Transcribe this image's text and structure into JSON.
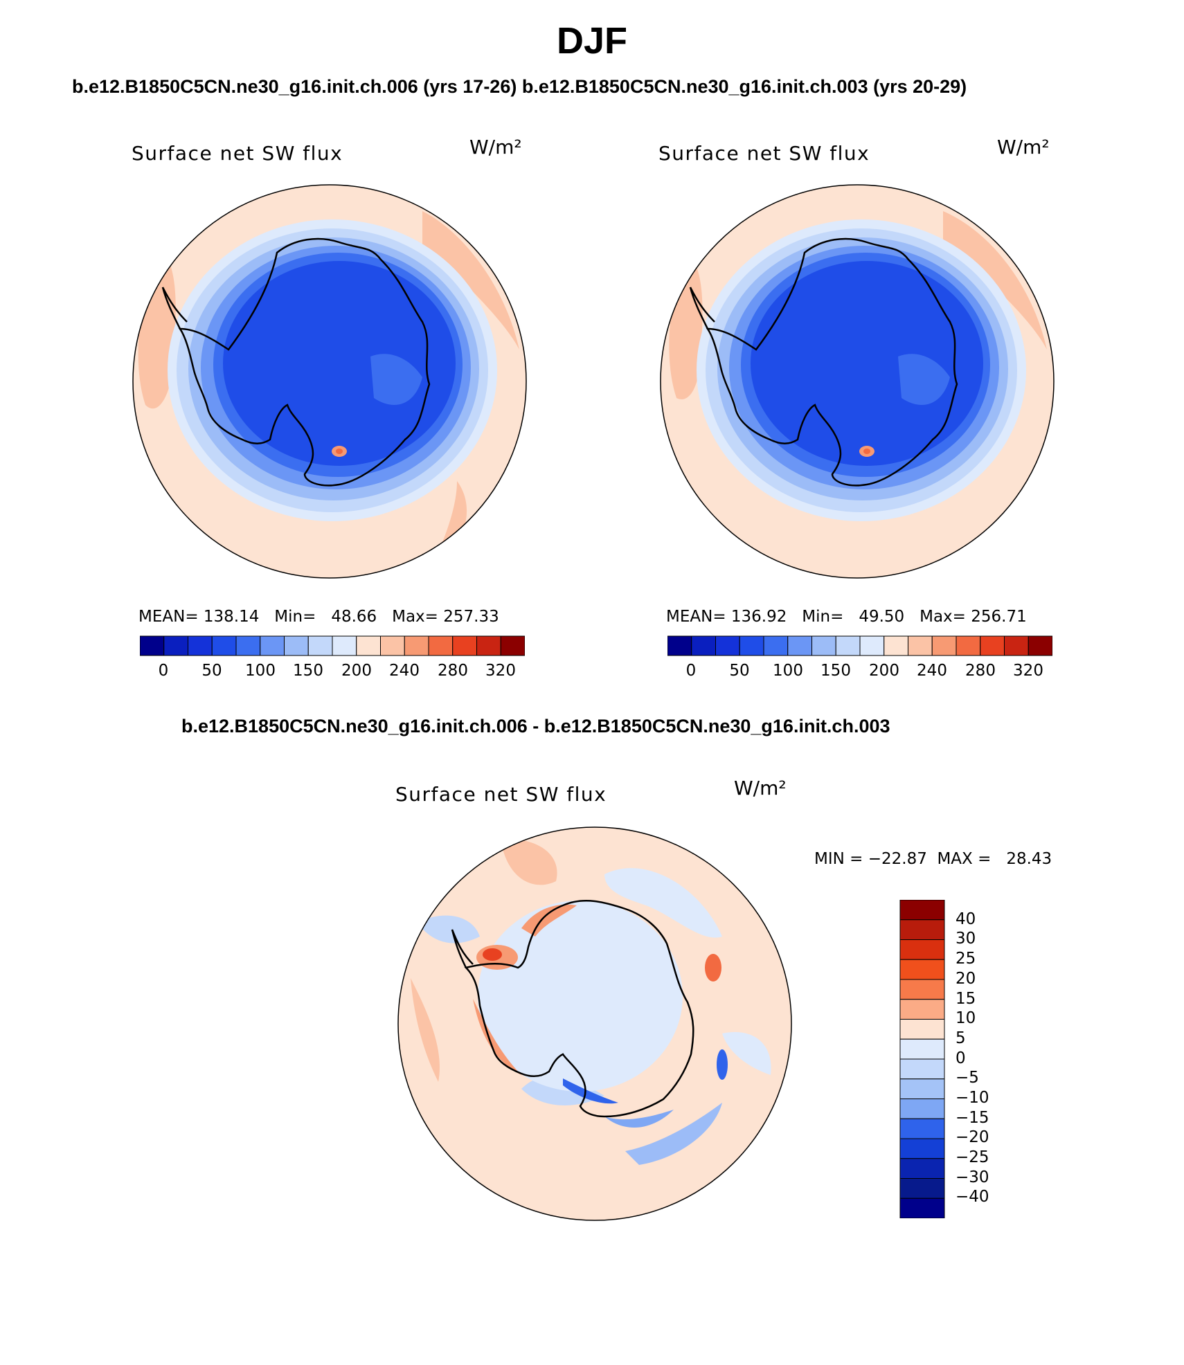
{
  "figure": {
    "season": "DJF",
    "top_title": "b.e12.B1850C5CN.ne30_g16.init.ch.006 (yrs 17-26) b.e12.B1850C5CN.ne30_g16.init.ch.003 (yrs 20-29)",
    "diff_title": "b.e12.B1850C5CN.ne30_g16.init.ch.006 - b.e12.B1850C5CN.ne30_g16.init.ch.003"
  },
  "panels": [
    {
      "variable": "Surface net SW flux",
      "units": "W/m²",
      "stats": "MEAN= 138.14   Min=   48.66   Max= 257.33"
    },
    {
      "variable": "Surface net SW flux",
      "units": "W/m²",
      "stats": "MEAN= 136.92   Min=   49.50   Max= 256.71"
    },
    {
      "variable": "Surface net SW flux",
      "units": "W/m²",
      "stats": "MIN = −22.87  MAX =   28.43"
    }
  ],
  "chart_data": [
    {
      "type": "heatmap",
      "projection": "south-polar-stereographic",
      "title": "Surface net SW flux",
      "units": "W/m²",
      "mean": 138.14,
      "min": 48.66,
      "max": 257.33,
      "colorbar": {
        "orientation": "horizontal",
        "tick_labels": [
          "0",
          "50",
          "100",
          "150",
          "200",
          "240",
          "280",
          "320"
        ],
        "levels": [
          0,
          25,
          50,
          75,
          100,
          125,
          150,
          175,
          200,
          220,
          240,
          260,
          280,
          300,
          320
        ],
        "colors": [
          "#00008b",
          "#0a1fbf",
          "#1432d9",
          "#1f4de8",
          "#3b6ef0",
          "#6b96f5",
          "#9cbcf7",
          "#c3d8fa",
          "#deeafc",
          "#fde3d2",
          "#fbc3a6",
          "#f79a73",
          "#f26a41",
          "#e84120",
          "#c92412",
          "#8b0000"
        ]
      }
    },
    {
      "type": "heatmap",
      "projection": "south-polar-stereographic",
      "title": "Surface net SW flux",
      "units": "W/m²",
      "mean": 136.92,
      "min": 49.5,
      "max": 256.71,
      "colorbar": {
        "orientation": "horizontal",
        "tick_labels": [
          "0",
          "50",
          "100",
          "150",
          "200",
          "240",
          "280",
          "320"
        ],
        "levels": [
          0,
          25,
          50,
          75,
          100,
          125,
          150,
          175,
          200,
          220,
          240,
          260,
          280,
          300,
          320
        ],
        "colors": [
          "#00008b",
          "#0a1fbf",
          "#1432d9",
          "#1f4de8",
          "#3b6ef0",
          "#6b96f5",
          "#9cbcf7",
          "#c3d8fa",
          "#deeafc",
          "#fde3d2",
          "#fbc3a6",
          "#f79a73",
          "#f26a41",
          "#e84120",
          "#c92412",
          "#8b0000"
        ]
      }
    },
    {
      "type": "heatmap",
      "projection": "south-polar-stereographic",
      "title": "Surface net SW flux",
      "units": "W/m²",
      "min": -22.87,
      "max": 28.43,
      "colorbar": {
        "orientation": "vertical",
        "tick_labels": [
          "40",
          "30",
          "25",
          "20",
          "15",
          "10",
          "5",
          "0",
          "−5",
          "−10",
          "−15",
          "−20",
          "−25",
          "−30",
          "−40"
        ],
        "colors": [
          "#8b0000",
          "#b81c0c",
          "#d9300f",
          "#f0501c",
          "#f77a4a",
          "#fbab86",
          "#fde3d2",
          "#deeafc",
          "#c3d8fa",
          "#a4c3f7",
          "#7ea7f4",
          "#2f63eb",
          "#1440d6",
          "#0a24b0",
          "#071a8c",
          "#00008b"
        ]
      }
    }
  ]
}
